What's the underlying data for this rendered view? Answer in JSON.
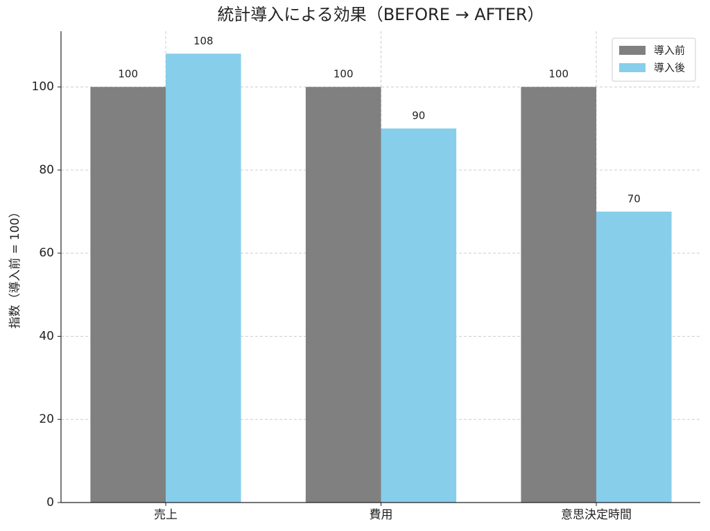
{
  "chart_data": {
    "type": "bar",
    "title": "統計導入による効果（BEFORE → AFTER）",
    "y_label": "指数（導入前 = 100）",
    "categories": [
      "売上",
      "費用",
      "意思決定時間"
    ],
    "series": [
      {
        "name": "導入前",
        "color": "#808080",
        "values": [
          100,
          100,
          100
        ]
      },
      {
        "name": "導入後",
        "color": "#87ceeb",
        "values": [
          108,
          90,
          70
        ]
      }
    ],
    "ylim": [
      0,
      113.4
    ],
    "yticks": [
      0,
      20,
      40,
      60,
      80,
      100
    ],
    "grid": true,
    "legend": "upper right"
  }
}
